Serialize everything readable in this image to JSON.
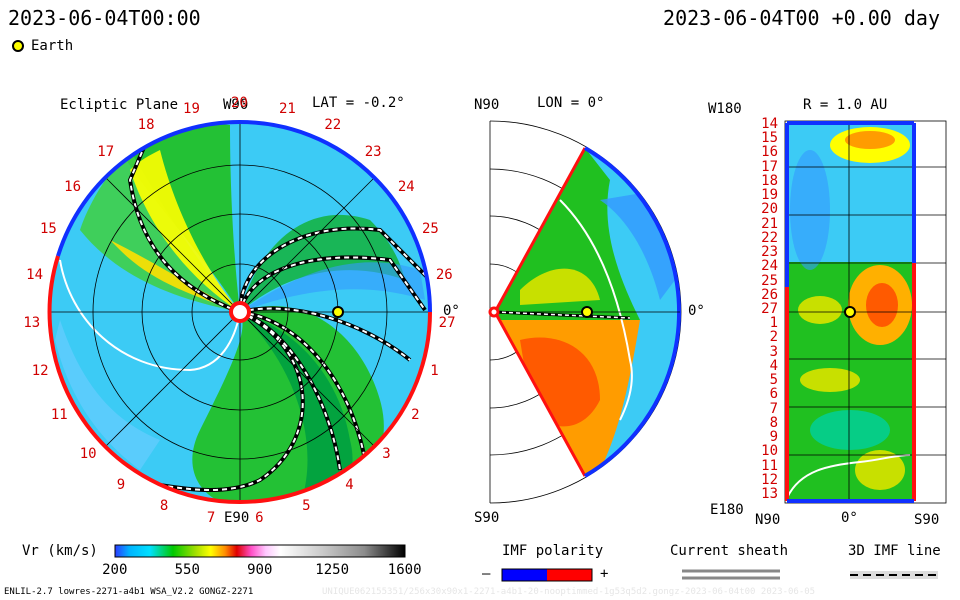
{
  "header": {
    "left_time": "2023-06-04T00:00",
    "right_time": "2023-06-04T00 +0.00 day",
    "legend_earth": "Earth"
  },
  "panels": {
    "ecliptic": {
      "title": "Ecliptic Plane",
      "lat_label": "LAT = -0.2°",
      "top_label": "W90",
      "bottom_label": "E90",
      "right_label": "0°",
      "carrington_labels": [
        "20",
        "21",
        "22",
        "23",
        "24",
        "25",
        "26",
        "27",
        "1",
        "2",
        "3",
        "4",
        "5",
        "6",
        "7",
        "8",
        "9",
        "10",
        "11",
        "12",
        "13",
        "14",
        "15",
        "16",
        "17",
        "18",
        "19"
      ]
    },
    "meridional": {
      "north_label": "N90",
      "south_label": "S90",
      "lon_label": "LON = 0°",
      "right_label": "0°"
    },
    "radial": {
      "title": "R = 1.0 AU",
      "top_left_label": "W180",
      "bottom_left_label": "E180",
      "x_labels": [
        "N90",
        "0°",
        "S90"
      ],
      "y_labels": [
        "14",
        "15",
        "16",
        "17",
        "18",
        "19",
        "20",
        "21",
        "22",
        "23",
        "24",
        "25",
        "26",
        "27",
        "1",
        "2",
        "3",
        "4",
        "5",
        "6",
        "7",
        "8",
        "9",
        "10",
        "11",
        "12",
        "13"
      ]
    }
  },
  "colorbar": {
    "label": "Vr (km/s)",
    "ticks": [
      "200",
      "550",
      "900",
      "1250",
      "1600"
    ],
    "stops": [
      "#2a3cff",
      "#00b4ff",
      "#00e0ff",
      "#00c800",
      "#a6e000",
      "#ffff00",
      "#ff8c00",
      "#e00000",
      "#ff50c8",
      "#ffc8ff",
      "#ffffff",
      "#c8c8c8",
      "#8c8c8c",
      "#000000"
    ]
  },
  "legend": {
    "imf_label": "IMF polarity",
    "imf_minus": "–",
    "imf_plus": "+",
    "imf_colors": {
      "negative": "#0000ff",
      "positive": "#ff0000"
    },
    "sheath_label": "Current sheath",
    "imf_line_label": "3D IMF line"
  },
  "footer": {
    "model_info": "ENLIL-2.7 lowres-2271-a4b1 WSA_V2.2 GONGZ-2271",
    "watermark": "UNIQUE062155351/256x30x90x1-2271-a4b1-20-nooptimmed-1g53q5d2.gongz-2023-06-04t00 2023-06-05"
  },
  "chart_data": {
    "type": "heatmap",
    "title": "",
    "variable": "Vr (km/s)",
    "color_range": [
      200,
      1600
    ],
    "time": "2023-06-04T00:00",
    "earth": {
      "longitude_deg": 0,
      "latitude_deg": -0.2,
      "r_au": 1.0
    },
    "panels": [
      "Ecliptic Plane",
      "LON = 0°",
      "R = 1.0 AU"
    ]
  }
}
